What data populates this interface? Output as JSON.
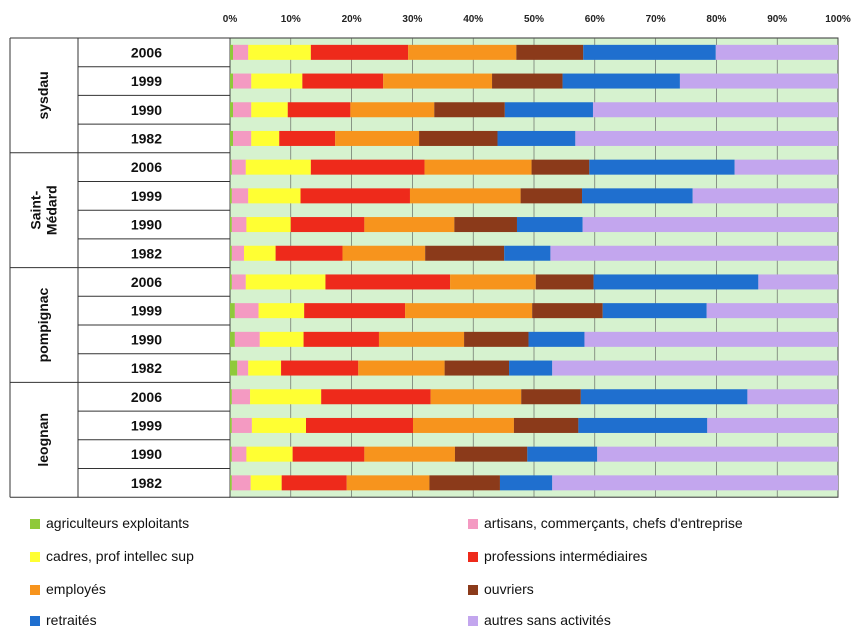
{
  "chart_data": {
    "type": "bar",
    "orientation": "horizontal",
    "stacked": "percent",
    "x_ticks": [
      "0%",
      "10%",
      "20%",
      "30%",
      "40%",
      "50%",
      "60%",
      "70%",
      "80%",
      "90%",
      "100%"
    ],
    "xlim": [
      0,
      100
    ],
    "grid": true,
    "legend_position": "bottom",
    "series": [
      {
        "name": "agriculteurs exploitants",
        "color": "#8fc93a"
      },
      {
        "name": "artisans, commerçants, chefs d'entreprise",
        "color": "#f49ac2"
      },
      {
        "name": "cadres, prof intellec sup",
        "color": "#ffff33"
      },
      {
        "name": "professions intermédiaires",
        "color": "#ee2a1b"
      },
      {
        "name": "employés",
        "color": "#f7941d"
      },
      {
        "name": "ouvriers",
        "color": "#8b3a1a"
      },
      {
        "name": "retraités",
        "color": "#1f6fcf"
      },
      {
        "name": "autres sans activités",
        "color": "#c3a6ee"
      }
    ],
    "groups": [
      {
        "name": "sysdau",
        "rows": [
          {
            "year": "2006",
            "values": [
              0.5,
              2.5,
              10.3,
              16.0,
              17.8,
              11.0,
              21.8,
              20.1
            ]
          },
          {
            "year": "1999",
            "values": [
              0.5,
              3.0,
              8.4,
              13.3,
              17.9,
              11.6,
              19.3,
              26.0
            ]
          },
          {
            "year": "1990",
            "values": [
              0.5,
              3.0,
              6.0,
              10.3,
              13.8,
              11.6,
              14.5,
              40.3
            ]
          },
          {
            "year": "1982",
            "values": [
              0.5,
              3.0,
              4.6,
              9.2,
              13.8,
              12.9,
              12.8,
              43.2
            ]
          }
        ]
      },
      {
        "name": "Saint-Médard",
        "rows": [
          {
            "year": "2006",
            "values": [
              0.3,
              2.3,
              10.7,
              18.7,
              17.6,
              9.5,
              23.9,
              17.0
            ]
          },
          {
            "year": "1999",
            "values": [
              0.3,
              2.7,
              8.6,
              18.0,
              18.2,
              10.1,
              18.2,
              23.9
            ]
          },
          {
            "year": "1990",
            "values": [
              0.3,
              2.4,
              7.3,
              12.1,
              14.8,
              10.3,
              10.8,
              42.0
            ]
          },
          {
            "year": "1982",
            "values": [
              0.3,
              2.0,
              5.2,
              11.0,
              13.6,
              13.0,
              7.6,
              47.3
            ]
          }
        ]
      },
      {
        "name": "pompignac",
        "rows": [
          {
            "year": "2006",
            "values": [
              0.3,
              2.3,
              13.1,
              20.5,
              14.1,
              9.5,
              27.1,
              13.1
            ]
          },
          {
            "year": "1999",
            "values": [
              0.8,
              3.9,
              7.5,
              16.6,
              20.9,
              11.6,
              17.1,
              21.6
            ]
          },
          {
            "year": "1990",
            "values": [
              0.8,
              4.1,
              7.2,
              12.4,
              14.0,
              10.6,
              9.2,
              41.7
            ]
          },
          {
            "year": "1982",
            "values": [
              1.2,
              1.8,
              5.4,
              12.7,
              14.2,
              10.6,
              7.1,
              47.0
            ]
          }
        ]
      },
      {
        "name": "leognan",
        "rows": [
          {
            "year": "2006",
            "values": [
              0.3,
              3.0,
              11.7,
              18.0,
              14.9,
              9.8,
              27.4,
              14.9
            ]
          },
          {
            "year": "1999",
            "values": [
              0.3,
              3.3,
              8.9,
              17.6,
              16.6,
              10.6,
              21.2,
              21.5
            ]
          },
          {
            "year": "1990",
            "values": [
              0.3,
              2.4,
              7.6,
              11.8,
              14.9,
              11.9,
              11.5,
              39.6
            ]
          },
          {
            "year": "1982",
            "values": [
              0.3,
              3.1,
              5.1,
              10.7,
              13.6,
              11.6,
              8.6,
              47.0
            ]
          }
        ]
      }
    ]
  }
}
